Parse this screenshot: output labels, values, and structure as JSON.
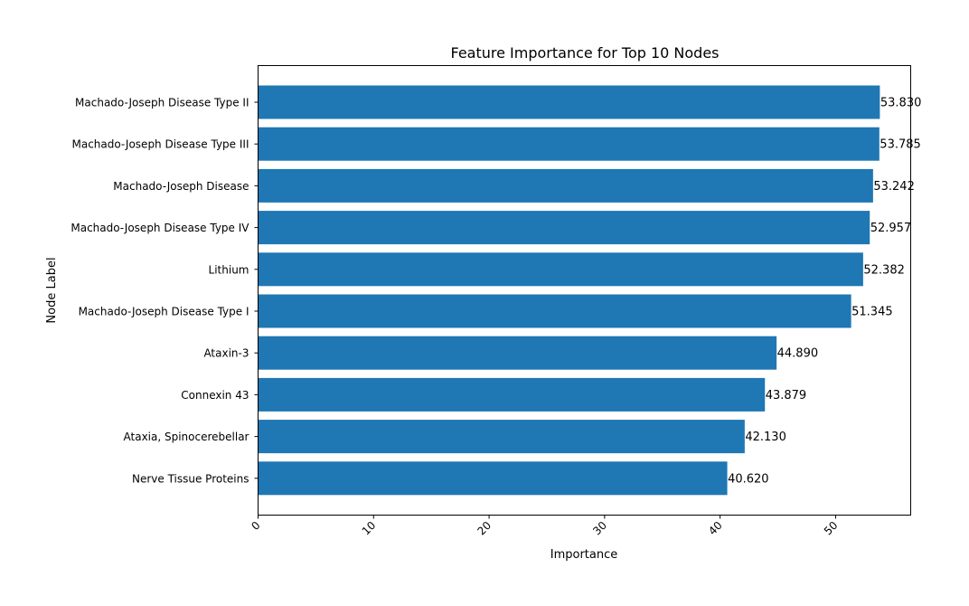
{
  "chart_data": {
    "type": "bar",
    "orientation": "horizontal",
    "title": "Feature Importance for Top 10 Nodes",
    "xlabel": "Importance",
    "ylabel": "Node Label",
    "categories": [
      "Machado-Joseph Disease Type II",
      "Machado-Joseph Disease Type III",
      "Machado-Joseph Disease",
      "Machado-Joseph Disease Type IV",
      "Lithium",
      "Machado-Joseph Disease Type I",
      "Ataxin-3",
      "Connexin 43",
      "Ataxia, Spinocerebellar",
      "Nerve Tissue Proteins"
    ],
    "values": [
      53.83,
      53.785,
      53.242,
      52.957,
      52.382,
      51.345,
      44.89,
      43.879,
      42.13,
      40.62
    ],
    "value_labels": [
      "53.830",
      "53.785",
      "53.242",
      "52.957",
      "52.382",
      "51.345",
      "44.890",
      "43.879",
      "42.130",
      "40.620"
    ],
    "xlim": [
      0,
      56.5
    ],
    "xticks": [
      0,
      10,
      20,
      30,
      40,
      50
    ],
    "xtick_labels": [
      "0",
      "10",
      "20",
      "30",
      "40",
      "50"
    ],
    "grid": false,
    "bar_color": "#1f77b4"
  }
}
